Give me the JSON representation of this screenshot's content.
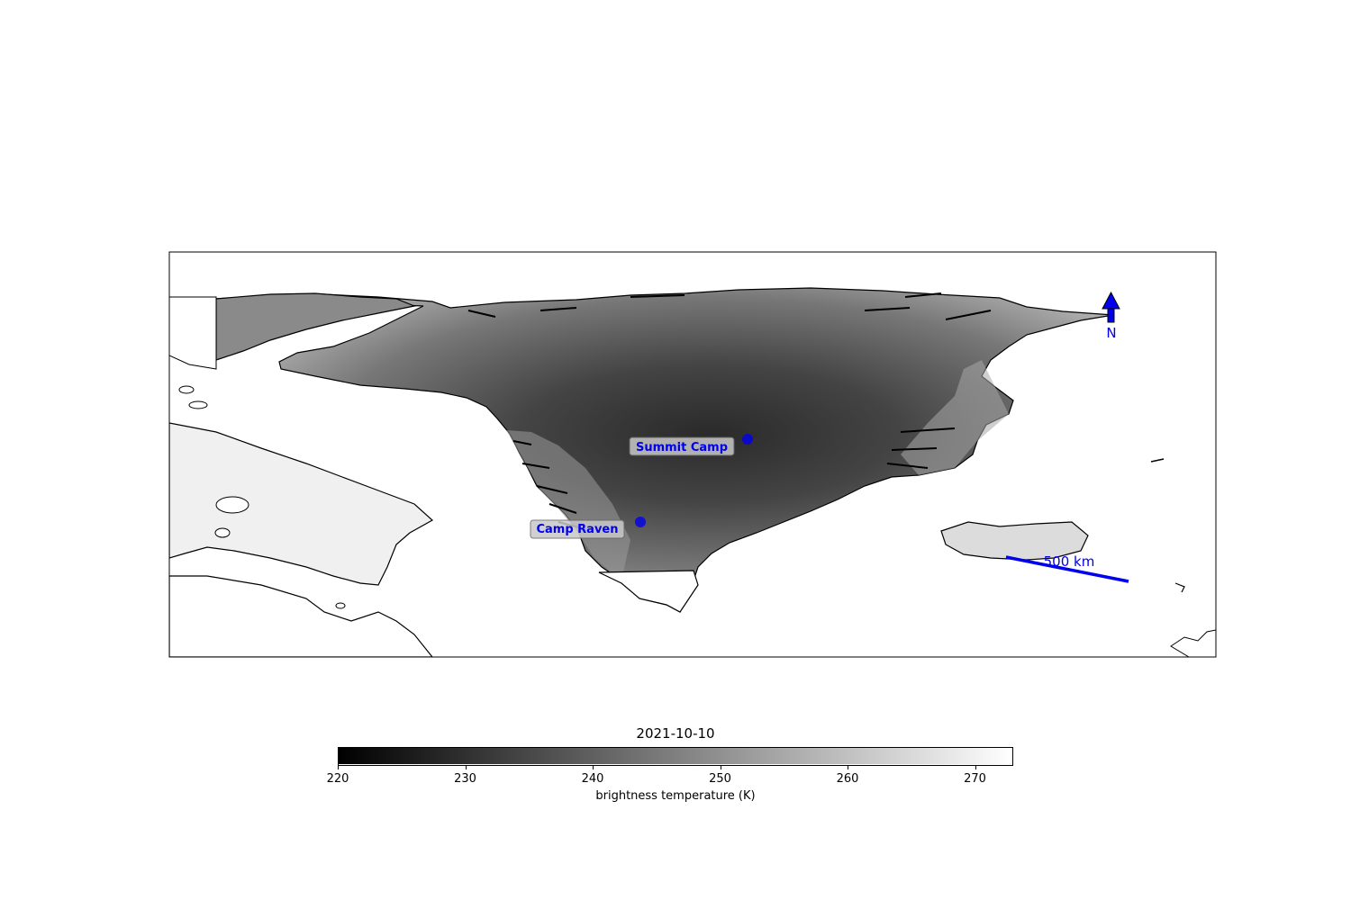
{
  "map": {
    "stations": [
      {
        "name": "Summit Camp"
      },
      {
        "name": "Camp Raven"
      }
    ],
    "scale_bar_label": "500 km",
    "north_arrow_label": "N",
    "marker_color": "#0000ee"
  },
  "colorbar": {
    "title": "2021-10-10",
    "label": "brightness temperature (K)",
    "vmin": 220,
    "vmax": 273,
    "colormap": "gray",
    "ticks": [
      "220",
      "230",
      "240",
      "250",
      "260",
      "270"
    ]
  }
}
